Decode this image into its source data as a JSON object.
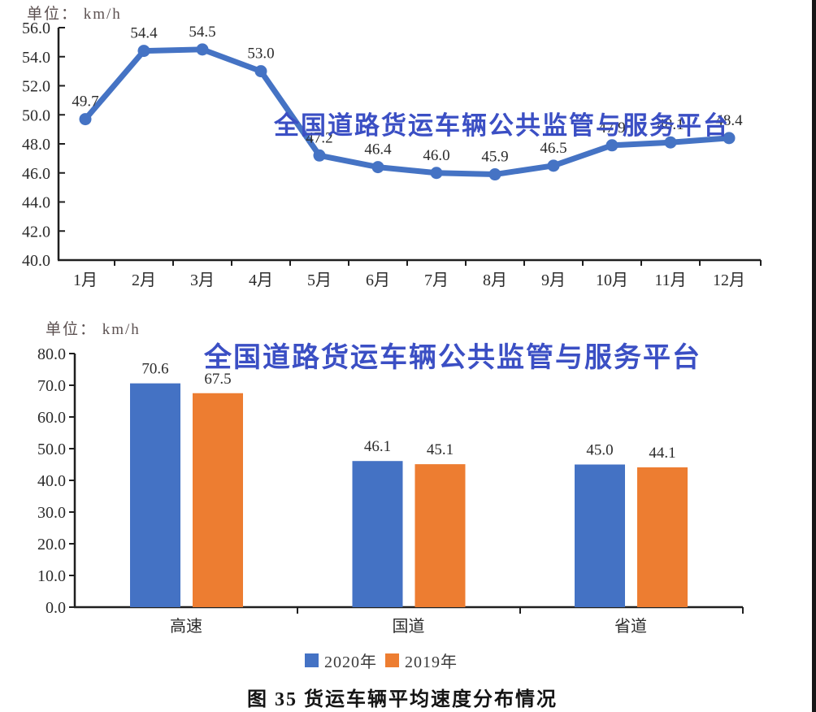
{
  "watermark_text": "全国道路货运车辆公共监管与服务平台",
  "caption": "图 35 货运车辆平均速度分布情况",
  "colors": {
    "line_blue": "#4573C4",
    "bar_blue": "#4472C4",
    "bar_orange": "#ED7D31",
    "watermark_blue": "#3B4FC4",
    "axis": "#1F1F1F",
    "label_text": "#2B2B2B"
  },
  "chart_data": [
    {
      "type": "line",
      "unit_label": "单位： km/h",
      "x": [
        "1月",
        "2月",
        "3月",
        "4月",
        "5月",
        "6月",
        "7月",
        "8月",
        "9月",
        "10月",
        "11月",
        "12月"
      ],
      "series": [
        {
          "values": [
            49.7,
            54.4,
            54.5,
            53.0,
            47.2,
            46.4,
            46.0,
            45.9,
            46.5,
            47.9,
            48.1,
            48.4
          ]
        }
      ],
      "ylim": [
        40.0,
        56.0
      ],
      "ytick_step": 2.0,
      "yticks": [
        "56.0",
        "54.0",
        "52.0",
        "50.0",
        "48.0",
        "46.0",
        "44.0",
        "42.0",
        "40.0"
      ],
      "grid": false,
      "data_labels": true,
      "note": "labels at 5月/10月/11月 partially covered by watermark"
    },
    {
      "type": "bar",
      "unit_label": "单位： km/h",
      "categories": [
        "高速",
        "国道",
        "省道"
      ],
      "series": [
        {
          "name": "2020年",
          "color": "#4472C4",
          "values": [
            70.6,
            46.1,
            45.0
          ]
        },
        {
          "name": "2019年",
          "color": "#ED7D31",
          "values": [
            67.5,
            45.1,
            44.1
          ]
        }
      ],
      "ylim": [
        0.0,
        80.0
      ],
      "ytick_step": 10.0,
      "yticks": [
        "80.0",
        "70.0",
        "60.0",
        "50.0",
        "40.0",
        "30.0",
        "20.0",
        "10.0",
        "0.0"
      ],
      "grid": false,
      "data_labels": true,
      "legend_position": "bottom"
    }
  ]
}
